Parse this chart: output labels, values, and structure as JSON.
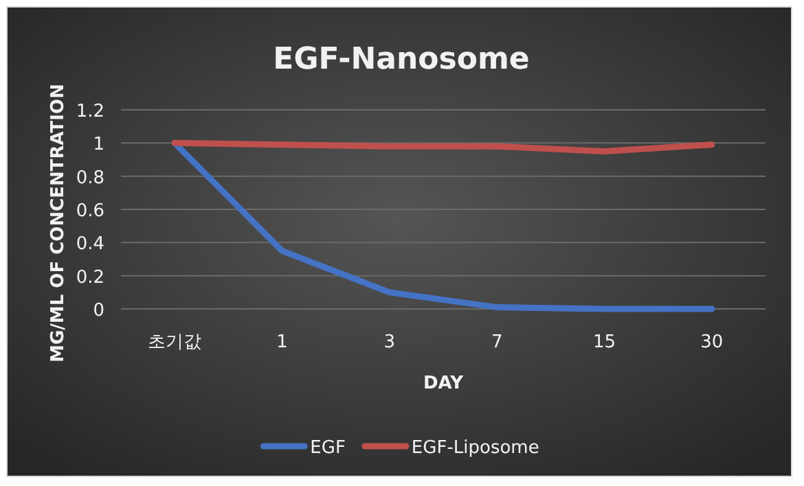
{
  "chart_data": {
    "type": "line",
    "title": "EGF-Nanosome",
    "xlabel": "DAY",
    "ylabel": "MG/ML OF CONCENTRATION",
    "categories": [
      "초기값",
      "1",
      "3",
      "7",
      "15",
      "30"
    ],
    "series": [
      {
        "name": "EGF",
        "color": "#4472c4",
        "values": [
          1,
          0.35,
          0.1,
          0.01,
          0,
          0
        ]
      },
      {
        "name": "EGF-Liposome",
        "color": "#c0504d",
        "values": [
          1,
          0.99,
          0.98,
          0.98,
          0.95,
          0.99
        ]
      }
    ],
    "ylim": [
      0,
      1.2
    ],
    "yticks": [
      0,
      0.2,
      0.4,
      0.6,
      0.8,
      1,
      1.2
    ],
    "grid": "y",
    "legend": "bottom"
  }
}
